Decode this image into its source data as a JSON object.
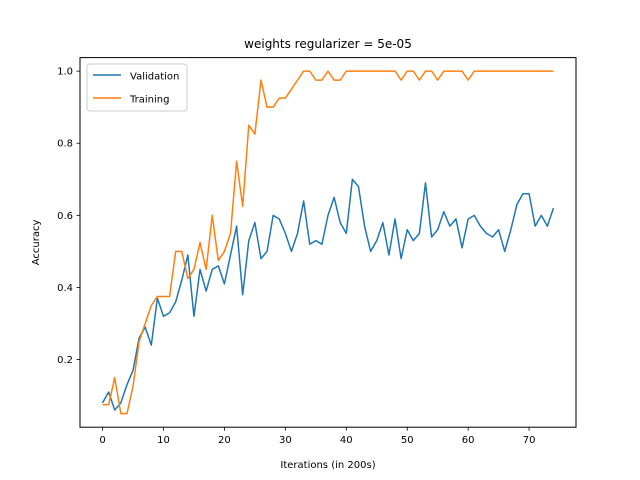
{
  "chart_data": {
    "type": "line",
    "title": "weights regularizer = 5e-05",
    "xlabel": "Iterations (in 200s)",
    "ylabel": "Accuracy",
    "xlim": [
      -3.7,
      77.7
    ],
    "ylim": [
      0.0125,
      1.0375
    ],
    "xticks": [
      0,
      10,
      20,
      30,
      40,
      50,
      60,
      70
    ],
    "yticks": [
      0.2,
      0.4,
      0.6,
      0.8,
      1.0
    ],
    "xtick_labels": [
      "0",
      "10",
      "20",
      "30",
      "40",
      "50",
      "60",
      "70"
    ],
    "ytick_labels": [
      "0.2",
      "0.4",
      "0.6",
      "0.8",
      "1.0"
    ],
    "grid": false,
    "legend_position": "top-left",
    "series": [
      {
        "name": "Validation",
        "color": "#1f77b4",
        "values": [
          0.08,
          0.11,
          0.06,
          0.08,
          0.13,
          0.17,
          0.26,
          0.29,
          0.24,
          0.37,
          0.32,
          0.33,
          0.36,
          0.42,
          0.49,
          0.32,
          0.45,
          0.39,
          0.45,
          0.46,
          0.41,
          0.49,
          0.57,
          0.38,
          0.53,
          0.58,
          0.48,
          0.5,
          0.6,
          0.59,
          0.55,
          0.5,
          0.55,
          0.64,
          0.52,
          0.53,
          0.52,
          0.6,
          0.65,
          0.58,
          0.55,
          0.7,
          0.68,
          0.57,
          0.5,
          0.53,
          0.58,
          0.49,
          0.59,
          0.48,
          0.56,
          0.53,
          0.55,
          0.69,
          0.54,
          0.56,
          0.61,
          0.57,
          0.59,
          0.51,
          0.59,
          0.6,
          0.57,
          0.55,
          0.54,
          0.56,
          0.5,
          0.56,
          0.63,
          0.66,
          0.66,
          0.57,
          0.6,
          0.57,
          0.62
        ]
      },
      {
        "name": "Training",
        "color": "#ff7f0e",
        "values": [
          0.075,
          0.075,
          0.15,
          0.05,
          0.05,
          0.125,
          0.25,
          0.3,
          0.35,
          0.375,
          0.375,
          0.375,
          0.5,
          0.5,
          0.425,
          0.45,
          0.525,
          0.45,
          0.6,
          0.475,
          0.5,
          0.55,
          0.75,
          0.625,
          0.85,
          0.825,
          0.975,
          0.9,
          0.9,
          0.925,
          0.925,
          0.95,
          0.975,
          1.0,
          1.0,
          0.975,
          0.975,
          1.0,
          0.975,
          0.975,
          1.0,
          1.0,
          1.0,
          1.0,
          1.0,
          1.0,
          1.0,
          1.0,
          1.0,
          0.975,
          1.0,
          1.0,
          0.975,
          1.0,
          1.0,
          0.975,
          1.0,
          1.0,
          1.0,
          1.0,
          0.975,
          1.0,
          1.0,
          1.0,
          1.0,
          1.0,
          1.0,
          1.0,
          1.0,
          1.0,
          1.0,
          1.0,
          1.0,
          1.0,
          1.0
        ]
      }
    ]
  }
}
